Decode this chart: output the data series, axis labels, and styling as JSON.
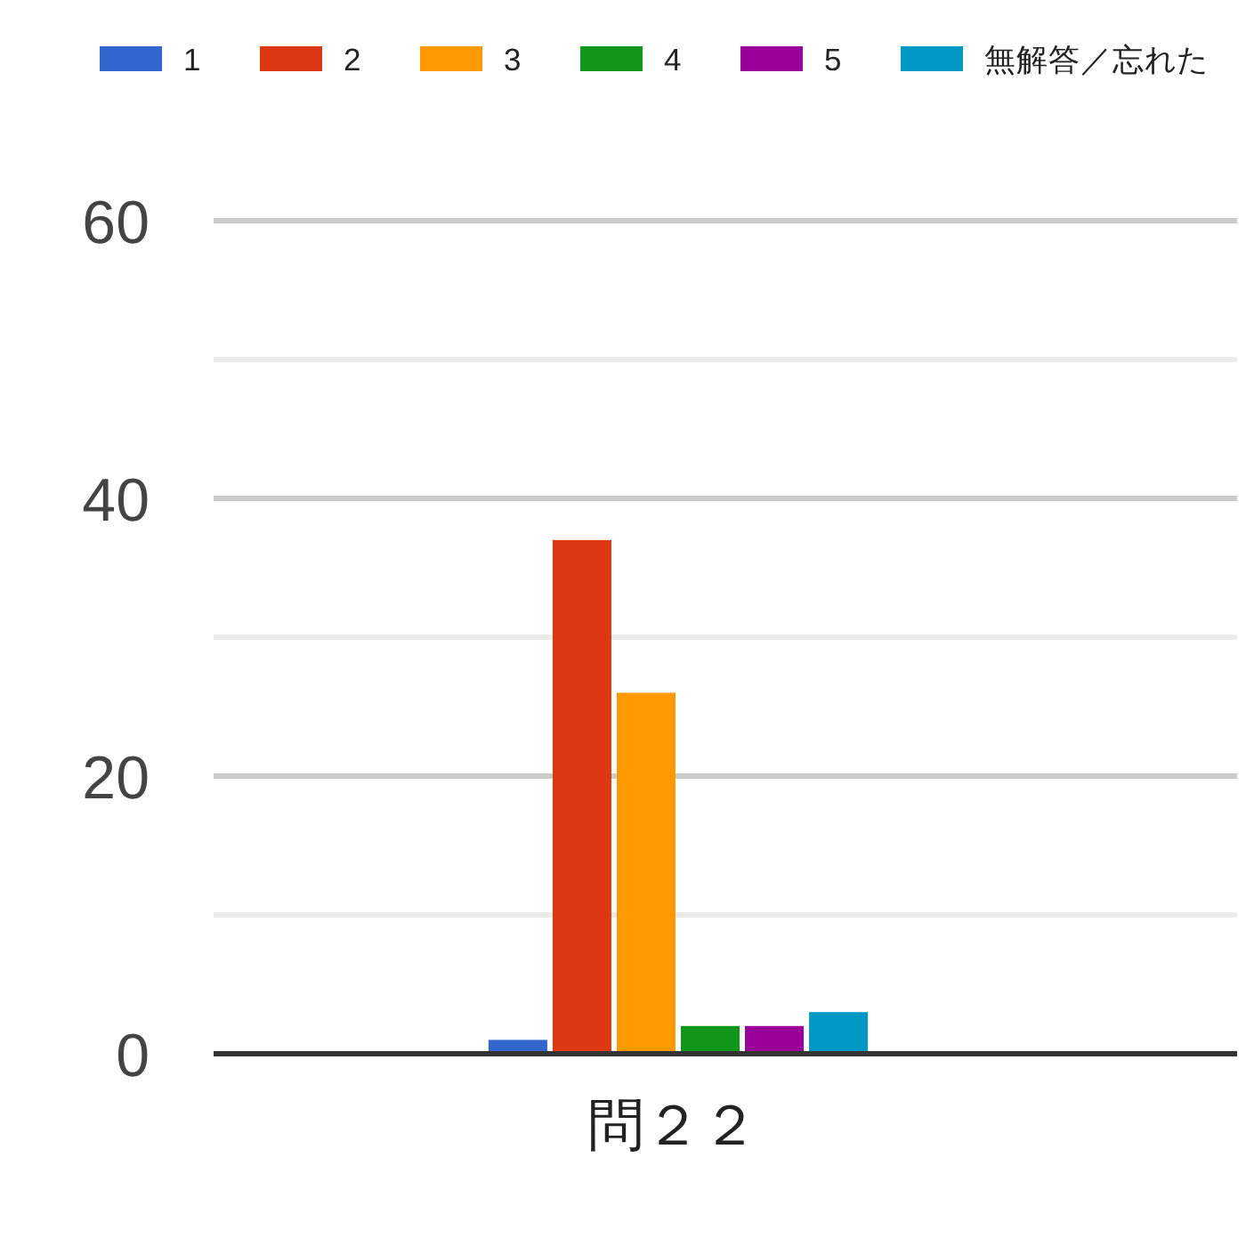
{
  "chart_data": {
    "type": "bar",
    "categories": [
      "問２２"
    ],
    "series": [
      {
        "name": "1",
        "color": "#3366cc",
        "values": [
          1
        ]
      },
      {
        "name": "2",
        "color": "#dc3912",
        "values": [
          37
        ]
      },
      {
        "name": "3",
        "color": "#ff9900",
        "values": [
          26
        ]
      },
      {
        "name": "4",
        "color": "#109618",
        "values": [
          2
        ]
      },
      {
        "name": "5",
        "color": "#990099",
        "values": [
          2
        ]
      },
      {
        "name": "無解答／忘れた",
        "color": "#0099c6",
        "values": [
          3
        ]
      }
    ],
    "ylim": [
      0,
      60
    ],
    "yticks": [
      0,
      {
        "value": 10,
        "label": null
      },
      20,
      {
        "value": 30,
        "label": null
      },
      40,
      {
        "value": 50,
        "label": null
      },
      60
    ],
    "grid": "y",
    "legend": "top"
  }
}
